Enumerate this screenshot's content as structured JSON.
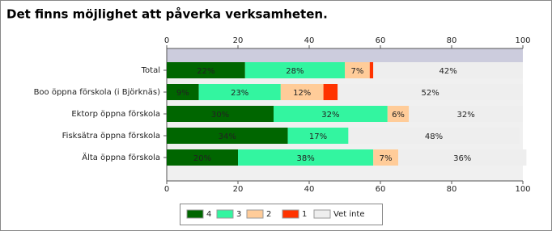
{
  "chart_data": {
    "type": "stacked-bar-horizontal",
    "title": "Det finns möjlighet att påverka verksamheten.",
    "categories": [
      "Total",
      "Boo öppna förskola (i Björknäs)",
      "Ektorp öppna förskola",
      "Fisksätra öppna förskola",
      "Älta öppna förskola"
    ],
    "series": [
      {
        "name": "4",
        "color": "#006600",
        "values": [
          22,
          9,
          30,
          34,
          20
        ],
        "value_labels": [
          "22%",
          "9%",
          "30%",
          "34%",
          "20%"
        ]
      },
      {
        "name": "3",
        "color": "#33f5a0",
        "values": [
          28,
          23,
          32,
          17,
          38
        ],
        "value_labels": [
          "28%",
          "23%",
          "32%",
          "17%",
          "38%"
        ]
      },
      {
        "name": "2",
        "color": "#ffcc99",
        "values": [
          7,
          12,
          6,
          0,
          7
        ],
        "value_labels": [
          "7%",
          "12%",
          "6%",
          null,
          "7%"
        ]
      },
      {
        "name": "1",
        "color": "#ff3300",
        "values": [
          1,
          4,
          0,
          0,
          0
        ],
        "value_labels": [
          null,
          null,
          null,
          null,
          null
        ]
      },
      {
        "name": "Vet inte",
        "color": "#eeeeee",
        "values": [
          42,
          52,
          32,
          48,
          36
        ],
        "value_labels": [
          "42%",
          "52%",
          "32%",
          "48%",
          "36%"
        ]
      }
    ],
    "xlim": [
      0,
      100
    ],
    "xticks": [
      0,
      20,
      40,
      60,
      80,
      100
    ]
  }
}
